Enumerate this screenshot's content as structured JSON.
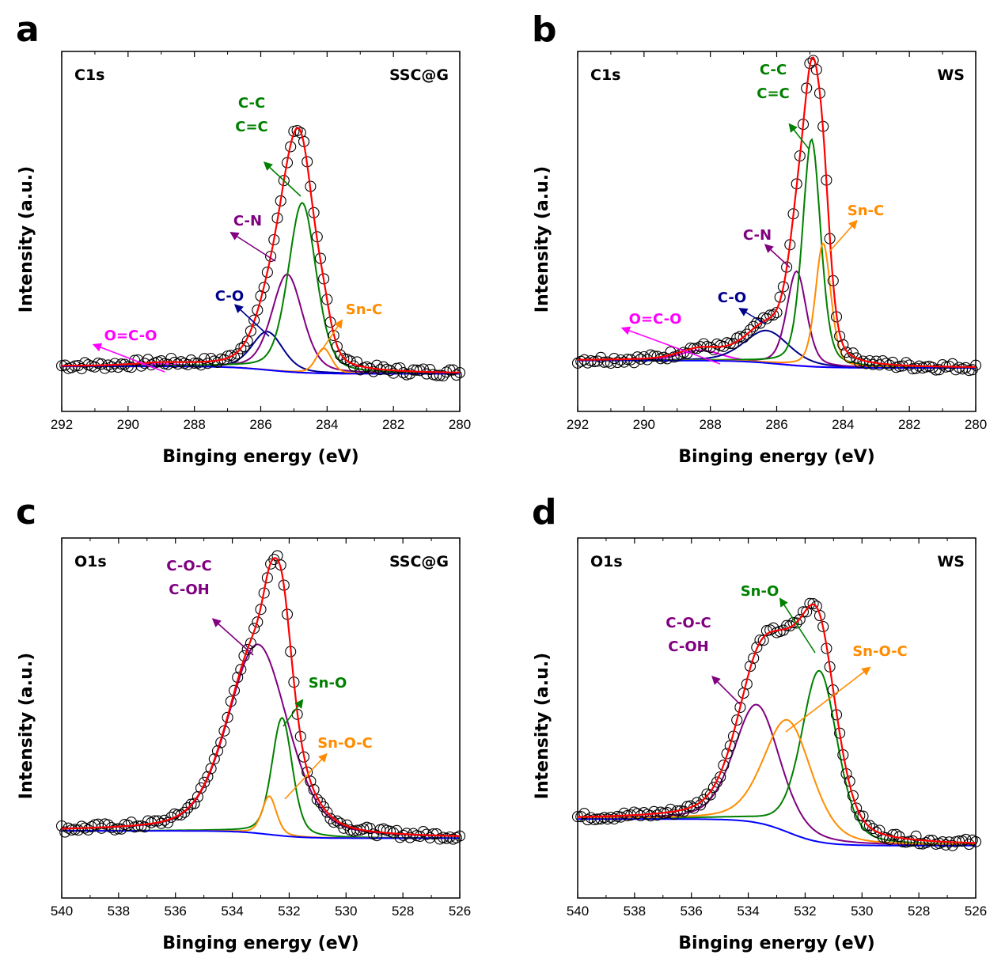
{
  "chart_data": [
    {
      "panel": "a",
      "type": "line",
      "region": "C1s",
      "sample": "SSC@G",
      "xlabel": "Binging energy (eV)",
      "ylabel": "Intensity (a.u.)",
      "xlim": [
        292,
        280
      ],
      "x_reversed": true,
      "xticks": [
        "292",
        "290",
        "288",
        "286",
        "284",
        "282",
        "280"
      ],
      "ylim": [
        0,
        1
      ],
      "background": 0.035,
      "peaks": [
        {
          "label": "O=C-O",
          "color": "#ff00ff",
          "center": 289.0,
          "height": 0.008,
          "fwhm": 1.8
        },
        {
          "label": "C-O",
          "color": "#00008b",
          "center": 285.8,
          "height": 0.13,
          "fwhm": 1.1
        },
        {
          "label": "C-N",
          "color": "#800080",
          "center": 285.2,
          "height": 0.33,
          "fwhm": 1.1
        },
        {
          "label": "C-C\nC=C",
          "color": "#008000",
          "center": 284.75,
          "height": 0.575,
          "fwhm": 1.0
        },
        {
          "label": "Sn-C",
          "color": "#ff8c00",
          "center": 284.1,
          "height": 0.085,
          "fwhm": 0.55
        }
      ],
      "envelope_color": "#ff0000",
      "background_color": "#0000ff"
    },
    {
      "panel": "b",
      "type": "line",
      "region": "C1s",
      "sample": "WS",
      "xlabel": "Binging energy (eV)",
      "ylabel": "Intensity (a.u.)",
      "xlim": [
        292,
        280
      ],
      "x_reversed": true,
      "xticks": [
        "292",
        "290",
        "288",
        "286",
        "284",
        "282",
        "280"
      ],
      "ylim": [
        0,
        1
      ],
      "background": 0.055,
      "peaks": [
        {
          "label": "O=C-O",
          "color": "#ff00ff",
          "center": 288.3,
          "height": 0.035,
          "fwhm": 1.5
        },
        {
          "label": "C-O",
          "color": "#00008b",
          "center": 286.3,
          "height": 0.11,
          "fwhm": 1.6
        },
        {
          "label": "C-N",
          "color": "#800080",
          "center": 285.4,
          "height": 0.32,
          "fwhm": 0.7
        },
        {
          "label": "C-C\nC=C",
          "color": "#008000",
          "center": 284.95,
          "height": 0.77,
          "fwhm": 0.65
        },
        {
          "label": "Sn-C",
          "color": "#ff8c00",
          "center": 284.6,
          "height": 0.42,
          "fwhm": 0.55
        }
      ],
      "envelope_color": "#ff0000",
      "background_color": "#0000ff"
    },
    {
      "panel": "c",
      "type": "line",
      "region": "O1s",
      "sample": "SSC@G",
      "xlabel": "Binging energy (eV)",
      "ylabel": "Intensity (a.u.)",
      "xlim": [
        540,
        526
      ],
      "x_reversed": true,
      "xticks": [
        "540",
        "538",
        "536",
        "534",
        "532",
        "530",
        "528",
        "526"
      ],
      "ylim": [
        0,
        1
      ],
      "background": 0.11,
      "peaks": [
        {
          "label": "C-O-C\nC-OH",
          "color": "#800080",
          "center": 533.1,
          "height": 0.64,
          "fwhm": 2.5
        },
        {
          "label": "Sn-O",
          "color": "#008000",
          "center": 532.25,
          "height": 0.4,
          "fwhm": 0.85
        },
        {
          "label": "Sn-O-C",
          "color": "#ff8c00",
          "center": 532.7,
          "height": 0.13,
          "fwhm": 0.6
        }
      ],
      "envelope_color": "#ff0000",
      "background_color": "#0000ff"
    },
    {
      "panel": "d",
      "type": "line",
      "region": "O1s",
      "sample": "WS",
      "xlabel": "Binging energy (eV)",
      "ylabel": "Intensity (a.u.)",
      "xlim": [
        540,
        526
      ],
      "x_reversed": true,
      "xticks": [
        "540",
        "538",
        "536",
        "534",
        "532",
        "530",
        "528",
        "526"
      ],
      "ylim": [
        0,
        1
      ],
      "background_left": 0.17,
      "background_right": 0.08,
      "peaks": [
        {
          "label": "C-O-C\nC-OH",
          "color": "#800080",
          "center": 533.7,
          "height": 0.4,
          "fwhm": 1.9
        },
        {
          "label": "Sn-O",
          "color": "#008000",
          "center": 531.5,
          "height": 0.58,
          "fwhm": 1.5
        },
        {
          "label": "Sn-O-C",
          "color": "#ff8c00",
          "center": 532.6,
          "height": 0.38,
          "fwhm": 2.0
        }
      ],
      "envelope_color": "#ff0000",
      "background_color": "#0000ff"
    }
  ]
}
